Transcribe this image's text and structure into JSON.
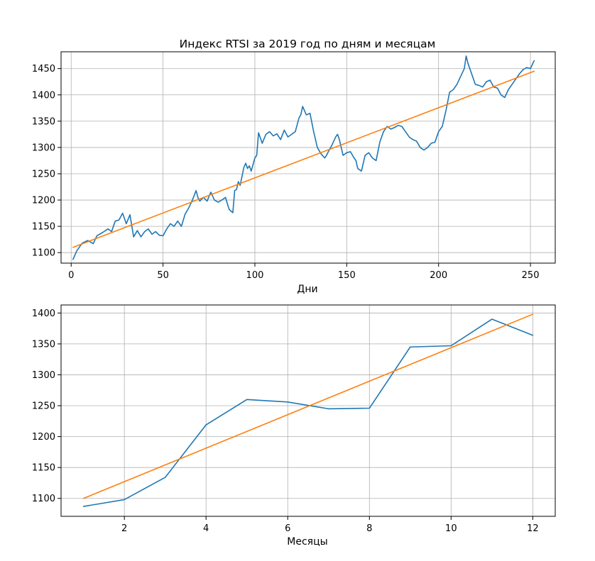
{
  "chart_data": [
    {
      "type": "line",
      "title": "Индекс RTSI за 2019 год по дням и месяцам",
      "xlabel": "Дни",
      "ylabel": "",
      "xlim": [
        -5.5,
        263.5
      ],
      "ylim": [
        1080,
        1482
      ],
      "xticks": [
        0,
        50,
        100,
        150,
        200,
        250
      ],
      "yticks": [
        1100,
        1150,
        1200,
        1250,
        1300,
        1350,
        1400,
        1450
      ],
      "grid": true,
      "series": [
        {
          "color": "#1f77b4",
          "x": [
            1,
            3,
            6,
            9,
            12,
            14,
            17,
            20,
            22,
            24,
            26,
            28,
            30,
            32,
            34,
            36,
            38,
            40,
            42,
            44,
            46,
            48,
            50,
            52,
            54,
            56,
            58,
            60,
            62,
            64,
            66,
            68,
            69,
            70,
            72,
            74,
            76,
            78,
            80,
            82,
            84,
            86,
            88,
            89,
            90,
            91,
            92,
            94,
            95,
            96,
            97,
            98,
            100,
            101,
            102,
            104,
            106,
            108,
            110,
            112,
            114,
            116,
            118,
            120,
            122,
            124,
            125,
            126,
            128,
            130,
            132,
            134,
            136,
            138,
            139,
            140,
            142,
            144,
            145,
            146,
            148,
            150,
            152,
            154,
            155,
            156,
            158,
            160,
            162,
            164,
            166,
            168,
            170,
            172,
            174,
            176,
            178,
            180,
            182,
            184,
            186,
            188,
            190,
            192,
            194,
            196,
            198,
            200,
            202,
            204,
            206,
            208,
            210,
            212,
            214,
            215,
            216,
            218,
            220,
            222,
            224,
            226,
            228,
            230,
            232,
            234,
            236,
            238,
            240,
            242,
            244,
            246,
            248,
            250,
            252
          ],
          "y": [
            1087,
            1103,
            1118,
            1123,
            1117,
            1132,
            1138,
            1145,
            1140,
            1160,
            1162,
            1175,
            1155,
            1172,
            1130,
            1142,
            1130,
            1140,
            1145,
            1135,
            1140,
            1133,
            1132,
            1145,
            1155,
            1150,
            1160,
            1150,
            1173,
            1185,
            1200,
            1218,
            1205,
            1198,
            1205,
            1198,
            1215,
            1200,
            1196,
            1200,
            1205,
            1182,
            1176,
            1218,
            1220,
            1235,
            1228,
            1262,
            1270,
            1260,
            1265,
            1255,
            1280,
            1285,
            1328,
            1308,
            1325,
            1330,
            1322,
            1326,
            1315,
            1333,
            1320,
            1325,
            1330,
            1356,
            1362,
            1378,
            1362,
            1365,
            1330,
            1300,
            1288,
            1280,
            1285,
            1292,
            1305,
            1320,
            1325,
            1315,
            1285,
            1290,
            1292,
            1280,
            1275,
            1260,
            1255,
            1285,
            1290,
            1280,
            1275,
            1310,
            1330,
            1340,
            1335,
            1338,
            1342,
            1340,
            1330,
            1320,
            1315,
            1312,
            1300,
            1295,
            1300,
            1308,
            1310,
            1330,
            1340,
            1370,
            1405,
            1410,
            1420,
            1435,
            1450,
            1474,
            1460,
            1440,
            1420,
            1418,
            1415,
            1425,
            1428,
            1415,
            1413,
            1400,
            1395,
            1410,
            1420,
            1430,
            1440,
            1448,
            1452,
            1450,
            1465
          ]
        },
        {
          "color": "#ff7f0e",
          "x": [
            1,
            252
          ],
          "y": [
            1110,
            1445
          ]
        }
      ]
    },
    {
      "type": "line",
      "title": "",
      "xlabel": "Месяцы",
      "ylabel": "",
      "xlim": [
        0.45,
        12.55
      ],
      "ylim": [
        1071,
        1413
      ],
      "xticks": [
        2,
        4,
        6,
        8,
        10,
        12
      ],
      "yticks": [
        1100,
        1150,
        1200,
        1250,
        1300,
        1350,
        1400
      ],
      "grid": true,
      "series": [
        {
          "color": "#1f77b4",
          "x": [
            1,
            2,
            3,
            4,
            5,
            6,
            7,
            8,
            9,
            10,
            11,
            12
          ],
          "y": [
            1087,
            1098,
            1134,
            1219,
            1260,
            1256,
            1245,
            1246,
            1345,
            1347,
            1390,
            1364
          ]
        },
        {
          "color": "#ff7f0e",
          "x": [
            1,
            12
          ],
          "y": [
            1100,
            1398
          ]
        }
      ]
    }
  ]
}
